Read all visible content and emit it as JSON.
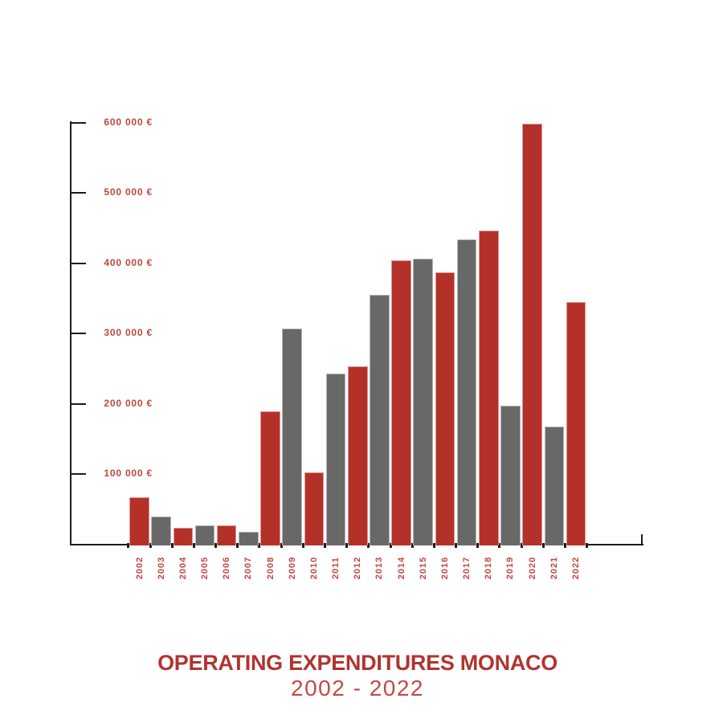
{
  "chart_data": {
    "type": "bar",
    "title": "OPERATING EXPENDITURES MONACO",
    "subtitle": "2002 - 2022",
    "xlabel": "",
    "ylabel": "",
    "unit": "€",
    "ylim": [
      0,
      600000
    ],
    "grid": false,
    "legend": false,
    "bar_color_rule": "alternating: even years red, odd years gray",
    "categories": [
      "2002",
      "2003",
      "2004",
      "2005",
      "2006",
      "2007",
      "2008",
      "2009",
      "2010",
      "2011",
      "2012",
      "2013",
      "2014",
      "2015",
      "2016",
      "2017",
      "2018",
      "2019",
      "2020",
      "2021",
      "2022"
    ],
    "values": [
      67000,
      40000,
      23000,
      27000,
      27000,
      18000,
      189000,
      307000,
      102000,
      243000,
      253000,
      355000,
      404000,
      406000,
      387000,
      434000,
      446000,
      197000,
      598000,
      168000,
      345000
    ],
    "y_ticks": [
      {
        "label": "600 000 €",
        "value": 600000
      },
      {
        "label": "500 000 €",
        "value": 500000
      },
      {
        "label": "400 000 €",
        "value": 400000
      },
      {
        "label": "300 000 €",
        "value": 300000
      },
      {
        "label": "200 000 €",
        "value": 200000
      },
      {
        "label": "100 000 €",
        "value": 100000
      }
    ]
  },
  "colors": {
    "background": "#FFFFFF",
    "bar_red": "#B43129",
    "bar_gray": "#686868",
    "axis": "#1C1C1C",
    "tick_label": "#C2463E",
    "title": "#B0342F",
    "subtitle": "#C04C45"
  }
}
